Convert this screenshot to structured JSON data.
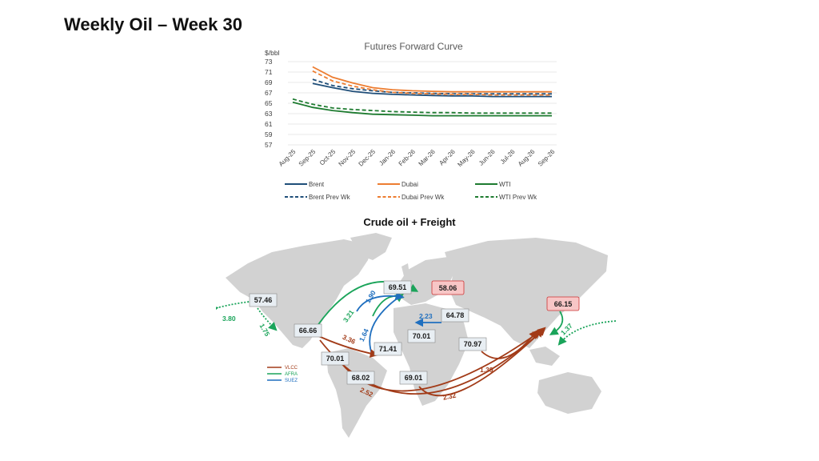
{
  "slide": {
    "title": "Weekly Oil – Week 30"
  },
  "chart_data": {
    "type": "line",
    "title": "Futures Forward Curve",
    "ylabel": "$/bbl",
    "xlabel": "",
    "ylim": [
      57,
      73
    ],
    "yticks": [
      73,
      71,
      69,
      67,
      65,
      63,
      61,
      59,
      57
    ],
    "categories": [
      "Aug-25",
      "Sep-25",
      "Oct-25",
      "Nov-25",
      "Dec-25",
      "Jan-26",
      "Feb-26",
      "Mar-26",
      "Apr-26",
      "May-26",
      "Jun-26",
      "Jul-26",
      "Aug-26",
      "Sep-26"
    ],
    "grid": true,
    "legend_position": "bottom",
    "series": [
      {
        "name": "Brent",
        "color": "#1f4e79",
        "dash": false,
        "start": 1,
        "values": [
          null,
          68.8,
          68.0,
          67.3,
          66.9,
          66.7,
          66.6,
          66.5,
          66.4,
          66.4,
          66.3,
          66.3,
          66.3,
          66.3
        ]
      },
      {
        "name": "Dubai",
        "color": "#ed7d31",
        "dash": false,
        "start": 1,
        "values": [
          null,
          72.0,
          70.0,
          68.9,
          68.0,
          67.6,
          67.4,
          67.3,
          67.2,
          67.2,
          67.2,
          67.2,
          67.2,
          67.2
        ]
      },
      {
        "name": "WTI",
        "color": "#1e7b30",
        "dash": false,
        "start": 0,
        "values": [
          65.2,
          64.2,
          63.6,
          63.2,
          62.9,
          62.8,
          62.7,
          62.6,
          62.6,
          62.6,
          62.6,
          62.6,
          62.6,
          62.6
        ]
      },
      {
        "name": "Brent Prev Wk",
        "color": "#1f4e79",
        "dash": true,
        "start": 1,
        "values": [
          null,
          69.6,
          68.4,
          67.8,
          67.4,
          67.1,
          67.0,
          66.9,
          66.8,
          66.8,
          66.8,
          66.8,
          66.8,
          66.8
        ]
      },
      {
        "name": "Dubai Prev Wk",
        "color": "#ed7d31",
        "dash": true,
        "start": 1,
        "values": [
          null,
          71.2,
          69.3,
          68.3,
          67.6,
          67.1,
          66.9,
          66.8,
          66.7,
          66.7,
          66.6,
          66.6,
          66.6,
          66.6
        ]
      },
      {
        "name": "WTI Prev Wk",
        "color": "#1e7b30",
        "dash": true,
        "start": 0,
        "values": [
          65.8,
          64.8,
          64.1,
          63.8,
          63.6,
          63.4,
          63.3,
          63.2,
          63.2,
          63.1,
          63.1,
          63.1,
          63.1,
          63.1
        ]
      }
    ]
  },
  "map": {
    "title": "Crude oil + Freight",
    "legend": [
      {
        "label": "VLCC",
        "color": "#a23b18"
      },
      {
        "label": "AFRA",
        "color": "#1aa45a"
      },
      {
        "label": "SUEZ",
        "color": "#1f6fbf"
      }
    ],
    "prices": [
      "57.46",
      "66.66",
      "70.01",
      "69.51",
      "58.06",
      "64.78",
      "70.01",
      "71.41",
      "70.97",
      "66.15",
      "68.02",
      "69.01"
    ],
    "freight": {
      "afra_380": "3.80",
      "afra_175": "1.75",
      "afra_321": "3.21",
      "afra_190": "1.90",
      "afra_137": "1.37",
      "suez_223": "2.23",
      "suez_164": "1.64",
      "vlcc_336": "3.36",
      "vlcc_139": "1.39",
      "vlcc_252": "2.52",
      "vlcc_232": "2.32"
    }
  }
}
